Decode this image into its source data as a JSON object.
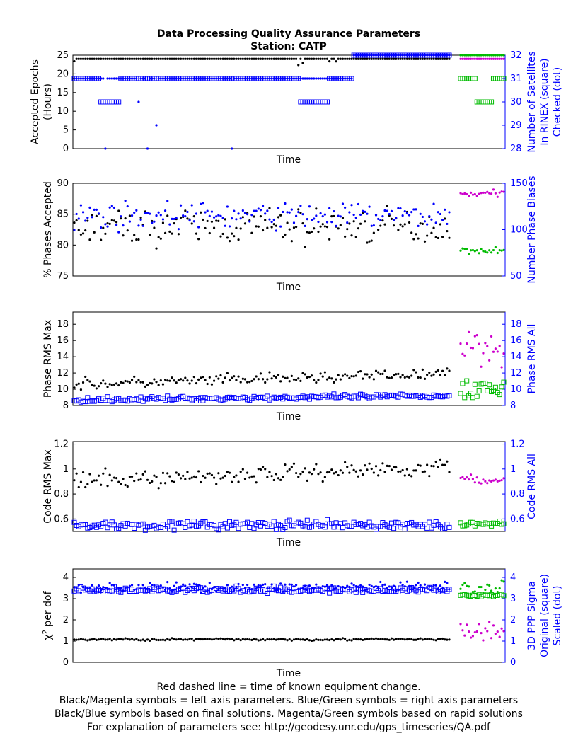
{
  "title": "Data Processing Quality Assurance Parameters",
  "subtitle": "Station: CATP",
  "colors": {
    "final_left": "#000000",
    "final_right": "#0000ff",
    "rapid_left": "#cc00cc",
    "rapid_right": "#00bb00"
  },
  "chart_data": [
    {
      "type": "scatter",
      "xlabel": "Time",
      "ylabel_left": [
        "Accepted Epochs",
        "(Hours)"
      ],
      "ylabel_right": [
        "Number of Satellites",
        "In RINEX (square)",
        "Checked (dot)"
      ],
      "ylim_left": [
        0,
        25
      ],
      "yticks_left": [
        0,
        5,
        10,
        15,
        20,
        25
      ],
      "ylim_right": [
        28,
        32
      ],
      "yticks_right": [
        28,
        29,
        30,
        31,
        32
      ],
      "grid": false,
      "series": [
        {
          "group": "final",
          "axis": "left",
          "marker": "dot",
          "typical": 24,
          "min_seen": 16,
          "values_desc": "mostly 24, few dips to 22-23, one to 16"
        },
        {
          "group": "final",
          "axis": "right",
          "marker": "square",
          "typical": 31,
          "low_segments": 30,
          "late_segments": 32
        },
        {
          "group": "final",
          "axis": "right",
          "marker": "dot",
          "typical": 31,
          "outliers": [
            28,
            29,
            30
          ]
        },
        {
          "group": "rapid",
          "axis": "left",
          "marker": "dot",
          "typical": 24
        },
        {
          "group": "rapid",
          "axis": "right",
          "marker": "square",
          "typical": 31,
          "low_segment": 30
        },
        {
          "group": "rapid",
          "axis": "right",
          "marker": "dot",
          "typical": 32
        }
      ]
    },
    {
      "type": "scatter",
      "xlabel": "Time",
      "ylabel_left": [
        "% Phases Accepted"
      ],
      "ylabel_right": [
        "Number Phase Biases"
      ],
      "ylim_left": [
        75,
        90
      ],
      "yticks_left": [
        75,
        80,
        85,
        90
      ],
      "ylim_right": [
        50,
        150
      ],
      "yticks_right": [
        50,
        100,
        150
      ],
      "grid": false,
      "series": [
        {
          "group": "final",
          "axis": "left",
          "marker": "dot",
          "mean": 83,
          "spread": 2.5
        },
        {
          "group": "final",
          "axis": "right",
          "marker": "dot",
          "mean": 115,
          "spread": 12
        },
        {
          "group": "rapid",
          "axis": "left",
          "marker": "dot",
          "mean": 88.3,
          "spread": 0.5
        },
        {
          "group": "rapid",
          "axis": "right",
          "marker": "dot",
          "mean": 78,
          "spread": 3
        }
      ]
    },
    {
      "type": "scatter",
      "xlabel": "Time",
      "ylabel_left": [
        "Phase RMS Max"
      ],
      "ylabel_right": [
        "Phase RMS All"
      ],
      "ylim_left": [
        8,
        19.5
      ],
      "yticks_left": [
        8,
        10,
        12,
        14,
        16,
        18
      ],
      "ylim_right": [
        8,
        19.5
      ],
      "yticks_right": [
        8,
        10,
        12,
        14,
        16,
        18
      ],
      "grid": false,
      "series": [
        {
          "group": "final",
          "axis": "left",
          "marker": "dot",
          "start": 10.6,
          "end": 11.9,
          "spread": 0.6
        },
        {
          "group": "final",
          "axis": "right",
          "marker": "square",
          "start": 8.7,
          "end": 9.2,
          "spread": 0.25
        },
        {
          "group": "rapid",
          "axis": "left",
          "marker": "dot",
          "mean": 15.5,
          "spread": 2.2
        },
        {
          "group": "rapid",
          "axis": "right",
          "marker": "square",
          "mean": 10,
          "spread": 1.2
        }
      ]
    },
    {
      "type": "scatter",
      "xlabel": "Time",
      "ylabel_left": [
        "Code RMS Max"
      ],
      "ylabel_right": [
        "Code RMS All"
      ],
      "ylim_left": [
        0.5,
        1.22
      ],
      "yticks_left": [
        0.6,
        0.8,
        1,
        1.2
      ],
      "ylim_right": [
        0.5,
        1.22
      ],
      "yticks_right": [
        0.6,
        0.8,
        1,
        1.2
      ],
      "grid": false,
      "series": [
        {
          "group": "final",
          "axis": "left",
          "marker": "dot",
          "start": 0.9,
          "end": 1.02,
          "spread": 0.06
        },
        {
          "group": "final",
          "axis": "right",
          "marker": "square",
          "mean": 0.55,
          "spread": 0.03
        },
        {
          "group": "rapid",
          "axis": "left",
          "marker": "dot",
          "mean": 0.91,
          "spread": 0.03
        },
        {
          "group": "rapid",
          "axis": "right",
          "marker": "square",
          "mean": 0.56,
          "spread": 0.02
        }
      ]
    },
    {
      "type": "scatter",
      "xlabel": "Time",
      "ylabel_left": [
        "χ",
        "2",
        " per dof"
      ],
      "ylabel_right": [
        "3D PPP Sigma",
        "Original (square)",
        "Scaled (dot)"
      ],
      "ylim_left": [
        0,
        4.4
      ],
      "yticks_left": [
        0,
        1,
        2,
        3,
        4
      ],
      "ylim_right": [
        0,
        4.4
      ],
      "yticks_right": [
        0,
        1,
        2,
        3,
        4
      ],
      "grid": false,
      "series": [
        {
          "group": "final",
          "axis": "left",
          "marker": "dot",
          "mean": 1.08,
          "spread": 0.05
        },
        {
          "group": "final",
          "axis": "right",
          "marker": "square",
          "mean": 3.4,
          "spread": 0.12
        },
        {
          "group": "final",
          "axis": "right",
          "marker": "dot",
          "mean": 3.55,
          "spread": 0.18
        },
        {
          "group": "rapid",
          "axis": "left",
          "marker": "dot",
          "mean": 1.4,
          "spread": 0.4
        },
        {
          "group": "rapid",
          "axis": "right",
          "marker": "square",
          "mean": 3.15,
          "spread": 0.05
        },
        {
          "group": "rapid",
          "axis": "right",
          "marker": "dot",
          "mean": 3.5,
          "spread": 0.4
        }
      ]
    }
  ],
  "footer": [
    "Red dashed line = time of known equipment change.",
    "Black/Magenta symbols = left axis parameters. Blue/Green symbols = right axis parameters",
    "Black/Blue symbols based on final solutions.  Magenta/Green symbols based on rapid solutions",
    "For explanation of parameters see: http://geodesy.unr.edu/gps_timeseries/QA.pdf"
  ]
}
